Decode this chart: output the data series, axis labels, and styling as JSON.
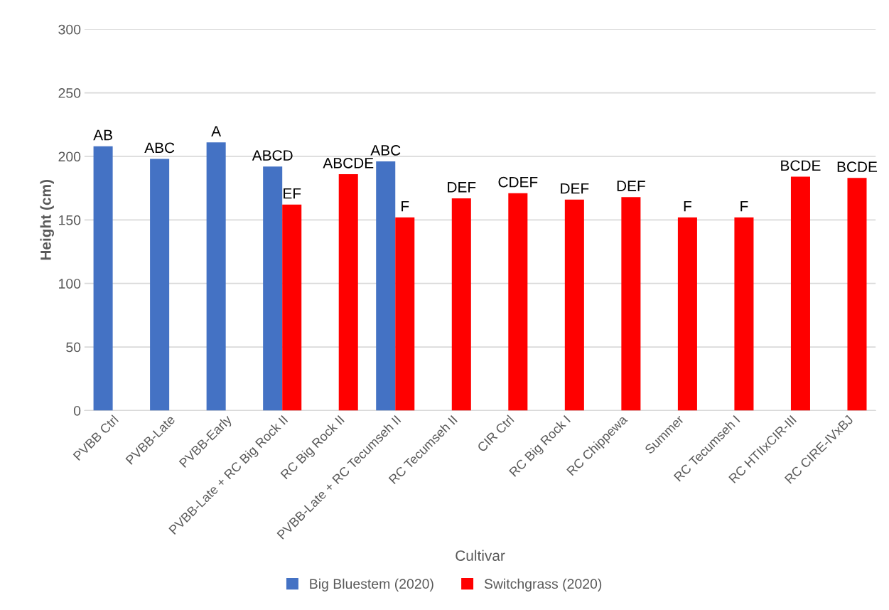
{
  "chart_data": {
    "type": "bar",
    "xlabel": "Cultivar",
    "ylabel": "Height (cm)",
    "categories": [
      "PVBB Ctrl",
      "PVBB-Late",
      "PVBB-Early",
      "PVBB-Late + RC Big Rock II",
      "RC Big Rock II",
      "PVBB-Late + RC Tecumseh II",
      "RC Tecumseh II",
      "CIR Ctrl",
      "RC Big Rock I",
      "RC Chippewa",
      "Summer",
      "RC Tecumseh I",
      "RC HTIIxCIR-III",
      "RC CIRE-IVxBJ"
    ],
    "series": [
      {
        "name": "Big Bluestem (2020)",
        "color": "#4472c4",
        "values": [
          208,
          198,
          211,
          192,
          null,
          196,
          null,
          null,
          null,
          null,
          null,
          null,
          null,
          null
        ],
        "value_labels": [
          "AB",
          "ABC",
          "A",
          "ABCD",
          null,
          "ABC",
          null,
          null,
          null,
          null,
          null,
          null,
          null,
          null
        ]
      },
      {
        "name": "Switchgrass (2020)",
        "color": "#ff0000",
        "values": [
          null,
          null,
          null,
          162,
          186,
          152,
          167,
          171,
          166,
          168,
          152,
          152,
          184,
          183
        ],
        "value_labels": [
          null,
          null,
          null,
          "EF",
          "ABCDE",
          "F",
          "DEF",
          "CDEF",
          "DEF",
          "DEF",
          "F",
          "F",
          "BCDE",
          "BCDE"
        ]
      }
    ],
    "ylim": [
      0,
      300
    ],
    "yticks": [
      0,
      50,
      100,
      150,
      200,
      250,
      300
    ],
    "grid": "y",
    "legend": "bottom"
  }
}
